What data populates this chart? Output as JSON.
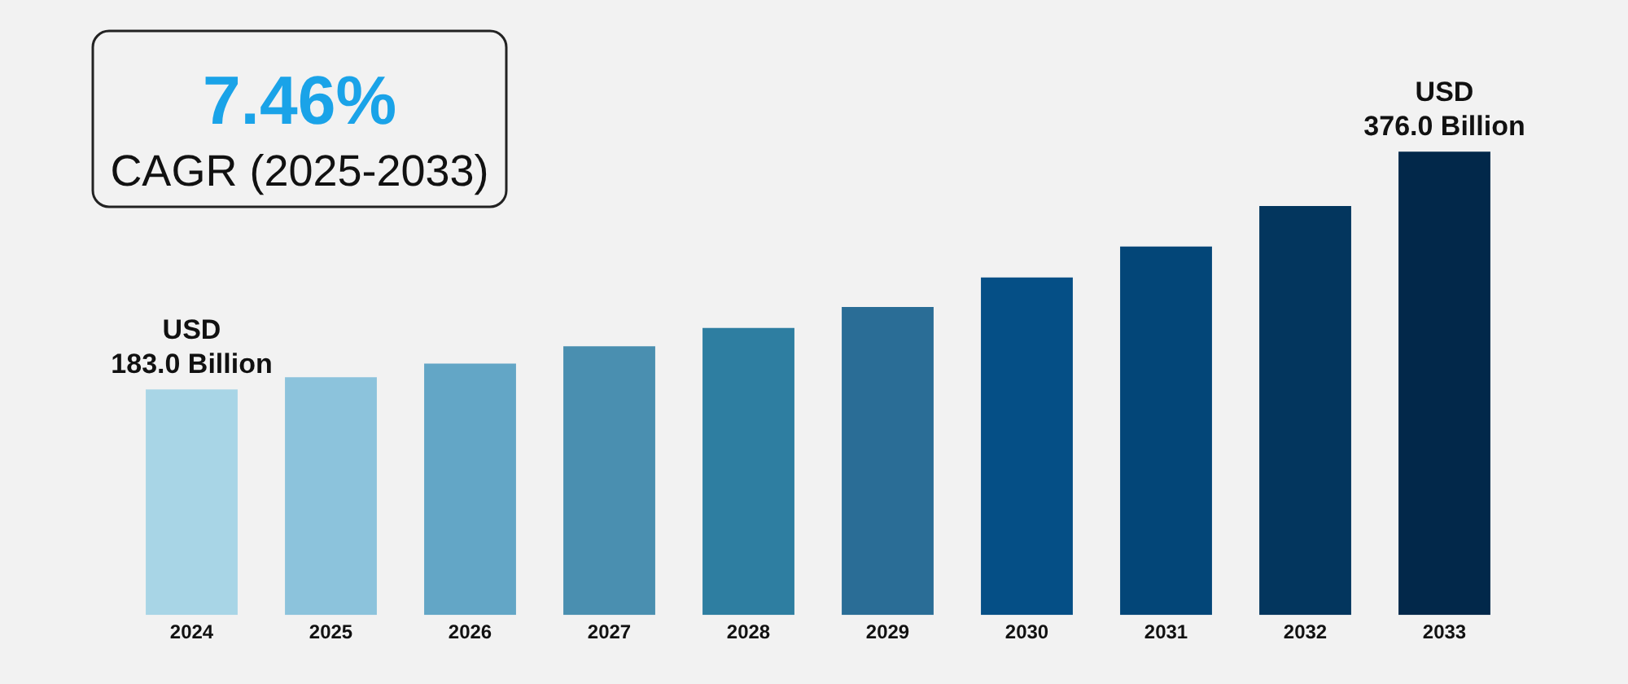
{
  "chart_data": {
    "type": "bar",
    "categories": [
      "2024",
      "2025",
      "2026",
      "2027",
      "2028",
      "2029",
      "2030",
      "2031",
      "2032",
      "2033"
    ],
    "values": [
      183.0,
      193,
      204,
      218,
      233,
      250,
      274,
      299,
      332,
      376.0
    ],
    "colors": [
      "#a8d5e6",
      "#8cc3dc",
      "#63a6c6",
      "#4a8fb0",
      "#2e7ea1",
      "#2a6d96",
      "#054f86",
      "#034678",
      "#03365e",
      "#02284a"
    ],
    "value_labels": [
      "USD\n183.0 Billion",
      null,
      null,
      null,
      null,
      null,
      null,
      null,
      null,
      "USD\n376.0 Billion"
    ],
    "annotations": [
      "7.46%",
      "CAGR (2025-2033)"
    ],
    "grid": false,
    "legend": false
  }
}
